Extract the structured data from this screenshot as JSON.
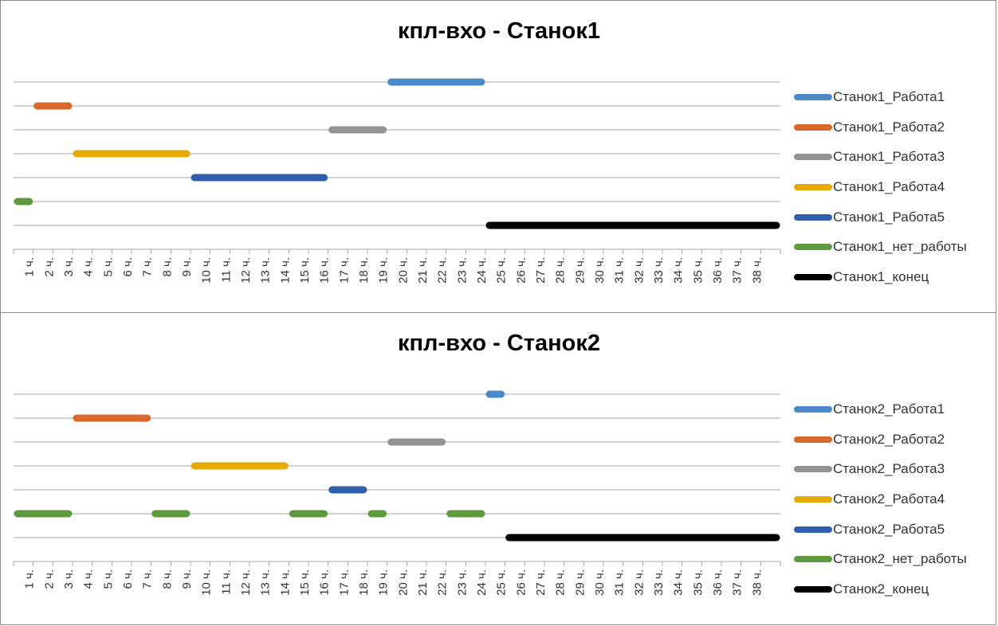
{
  "chart_data": [
    {
      "type": "gantt",
      "title": "кпл-вхо - Станок1",
      "tick_labels": [
        "1 ч.",
        "2 ч.",
        "3 ч.",
        "4 ч.",
        "5 ч.",
        "6 ч.",
        "7 ч.",
        "8 ч.",
        "9 ч.",
        "10 ч.",
        "11 ч.",
        "12 ч.",
        "13 ч.",
        "14 ч.",
        "15 ч.",
        "16 ч.",
        "17 ч.",
        "18 ч.",
        "19 ч.",
        "20 ч.",
        "21 ч.",
        "22 ч.",
        "23 ч.",
        "24 ч.",
        "25 ч.",
        "26 ч.",
        "27 ч.",
        "28 ч.",
        "29 ч.",
        "30 ч.",
        "31 ч.",
        "32 ч.",
        "33 ч.",
        "34 ч.",
        "35 ч.",
        "36 ч.",
        "37 ч.",
        "38 ч."
      ],
      "xlim": [
        0,
        39
      ],
      "grid": true,
      "legend_position": "right",
      "series": [
        {
          "name": "Станок1_Работа1",
          "color": "#4a89c8",
          "segments": [
            [
              19,
              24
            ]
          ]
        },
        {
          "name": "Станок1_Работа2",
          "color": "#d9692a",
          "segments": [
            [
              1,
              3
            ]
          ]
        },
        {
          "name": "Станок1_Работа3",
          "color": "#939393",
          "segments": [
            [
              16,
              19
            ]
          ]
        },
        {
          "name": "Станок1_Работа4",
          "color": "#e5aa00",
          "segments": [
            [
              3,
              9
            ]
          ]
        },
        {
          "name": "Станок1_Работа5",
          "color": "#2f5fac",
          "segments": [
            [
              9,
              16
            ]
          ]
        },
        {
          "name": "Станок1_нет_работы",
          "color": "#5e9a3c",
          "segments": [
            [
              0,
              1
            ]
          ]
        },
        {
          "name": "Станок1_конец",
          "color": "#000000",
          "segments": [
            [
              24,
              39
            ]
          ]
        }
      ]
    },
    {
      "type": "gantt",
      "title": "кпл-вхо - Станок2",
      "tick_labels": [
        "1 ч.",
        "2 ч.",
        "3 ч.",
        "4 ч.",
        "5 ч.",
        "6 ч.",
        "7 ч.",
        "8 ч.",
        "9 ч.",
        "10 ч.",
        "11 ч.",
        "12 ч.",
        "13 ч.",
        "14 ч.",
        "15 ч.",
        "16 ч.",
        "17 ч.",
        "18 ч.",
        "19 ч.",
        "20 ч.",
        "21 ч.",
        "22 ч.",
        "23 ч.",
        "24 ч.",
        "25 ч.",
        "26 ч.",
        "27 ч.",
        "28 ч.",
        "29 ч.",
        "30 ч.",
        "31 ч.",
        "32 ч.",
        "33 ч.",
        "34 ч.",
        "35 ч.",
        "36 ч.",
        "37 ч.",
        "38 ч."
      ],
      "xlim": [
        0,
        39
      ],
      "grid": true,
      "legend_position": "right",
      "series": [
        {
          "name": "Станок2_Работа1",
          "color": "#4a89c8",
          "segments": [
            [
              24,
              25
            ]
          ]
        },
        {
          "name": "Станок2_Работа2",
          "color": "#d9692a",
          "segments": [
            [
              3,
              7
            ]
          ]
        },
        {
          "name": "Станок2_Работа3",
          "color": "#939393",
          "segments": [
            [
              19,
              22
            ]
          ]
        },
        {
          "name": "Станок2_Работа4",
          "color": "#e5aa00",
          "segments": [
            [
              9,
              14
            ]
          ]
        },
        {
          "name": "Станок2_Работа5",
          "color": "#2f5fac",
          "segments": [
            [
              16,
              18
            ]
          ]
        },
        {
          "name": "Станок2_нет_работы",
          "color": "#5e9a3c",
          "segments": [
            [
              0,
              3
            ],
            [
              7,
              9
            ],
            [
              14,
              16
            ],
            [
              18,
              19
            ],
            [
              22,
              24
            ]
          ]
        },
        {
          "name": "Станок2_конец",
          "color": "#000000",
          "segments": [
            [
              25,
              39
            ]
          ]
        }
      ]
    }
  ]
}
